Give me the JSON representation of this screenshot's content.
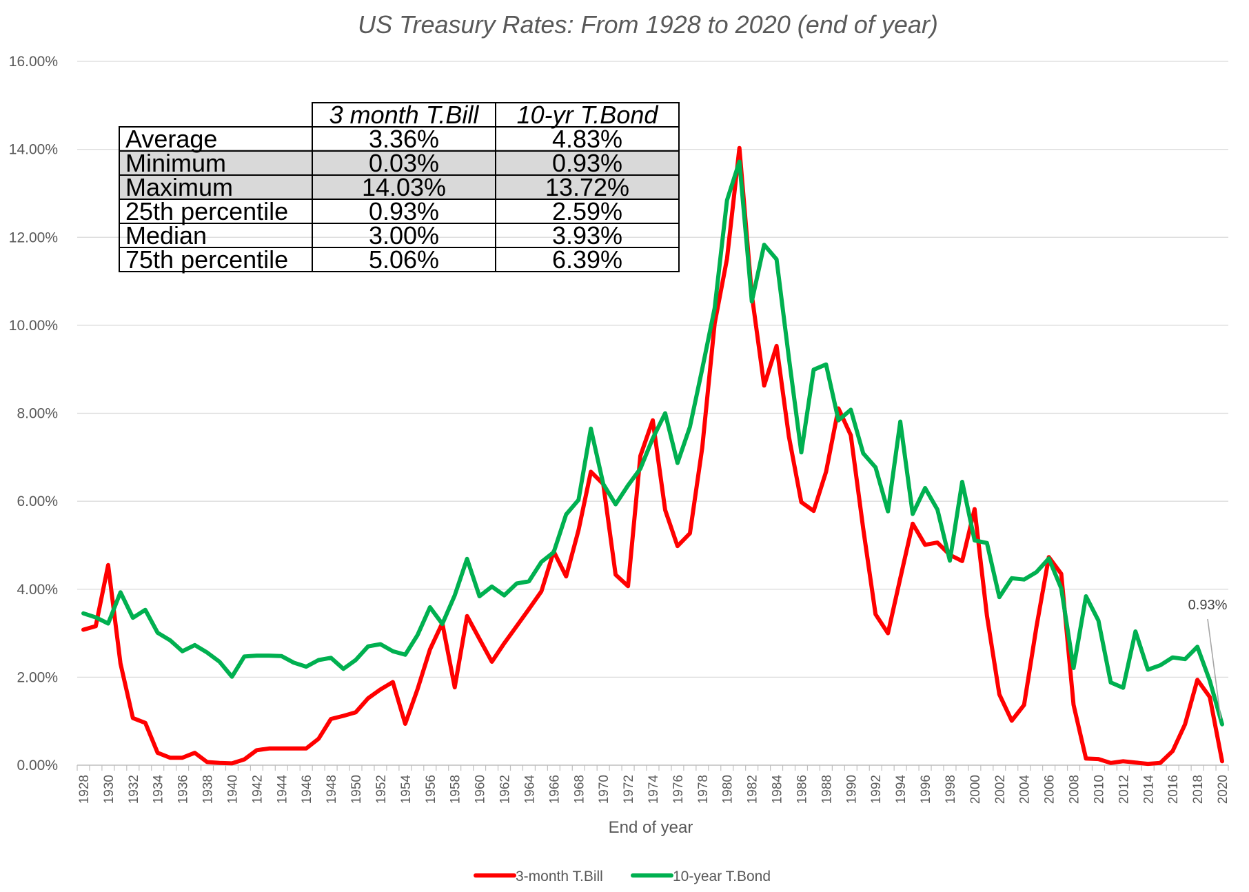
{
  "chart_data": {
    "type": "line",
    "title": "US Treasury Rates: From 1928 to 2020 (end of year)",
    "xlabel": "End of year",
    "ylabel": "",
    "xlim": [
      1928,
      2020
    ],
    "ylim": [
      0,
      16
    ],
    "yticks": [
      "0.00%",
      "2.00%",
      "4.00%",
      "6.00%",
      "8.00%",
      "10.00%",
      "12.00%",
      "14.00%",
      "16.00%"
    ],
    "xticks": [
      "1928",
      "1930",
      "1932",
      "1934",
      "1936",
      "1938",
      "1940",
      "1942",
      "1944",
      "1946",
      "1948",
      "1950",
      "1952",
      "1954",
      "1956",
      "1958",
      "1960",
      "1962",
      "1964",
      "1966",
      "1968",
      "1970",
      "1972",
      "1974",
      "1976",
      "1978",
      "1980",
      "1982",
      "1984",
      "1986",
      "1988",
      "1990",
      "1992",
      "1994",
      "1996",
      "1998",
      "2000",
      "2002",
      "2004",
      "2006",
      "2008",
      "2010",
      "2012",
      "2014",
      "2016",
      "2018",
      "2020"
    ],
    "grid": "horizontal",
    "legend": "bottom",
    "series": [
      {
        "name": "3-month T.Bill",
        "color": "#ff0000",
        "values": [
          3.08,
          3.16,
          4.55,
          2.31,
          1.07,
          0.96,
          0.28,
          0.17,
          0.17,
          0.28,
          0.07,
          0.05,
          0.04,
          0.13,
          0.34,
          0.38,
          0.38,
          0.38,
          0.38,
          0.6,
          1.05,
          1.12,
          1.2,
          1.52,
          1.72,
          1.89,
          0.94,
          1.73,
          2.63,
          3.23,
          1.77,
          3.39,
          2.87,
          2.35,
          2.77,
          3.16,
          3.55,
          3.95,
          4.86,
          4.29,
          5.34,
          6.67,
          6.39,
          4.33,
          4.07,
          7.03,
          7.84,
          5.8,
          4.98,
          5.27,
          7.22,
          10.04,
          11.51,
          14.03,
          10.69,
          8.63,
          9.53,
          7.47,
          5.98,
          5.78,
          6.67,
          8.11,
          7.5,
          5.38,
          3.43,
          3.0,
          4.25,
          5.49,
          5.01,
          5.06,
          4.78,
          4.64,
          5.82,
          3.4,
          1.61,
          1.01,
          1.37,
          3.15,
          4.73,
          4.35,
          1.37,
          0.15,
          0.14,
          0.05,
          0.09,
          0.06,
          0.03,
          0.05,
          0.32,
          0.93,
          1.94,
          1.55,
          0.09
        ]
      },
      {
        "name": "10-year T.Bond",
        "color": "#00b050",
        "values": [
          3.45,
          3.36,
          3.22,
          3.93,
          3.35,
          3.53,
          3.01,
          2.84,
          2.59,
          2.73,
          2.56,
          2.35,
          2.01,
          2.47,
          2.49,
          2.49,
          2.48,
          2.33,
          2.24,
          2.39,
          2.44,
          2.19,
          2.39,
          2.7,
          2.75,
          2.59,
          2.51,
          2.96,
          3.59,
          3.21,
          3.86,
          4.69,
          3.84,
          4.06,
          3.86,
          4.13,
          4.18,
          4.62,
          4.84,
          5.7,
          6.03,
          7.65,
          6.39,
          5.93,
          6.36,
          6.74,
          7.43,
          8.0,
          6.87,
          7.69,
          9.01,
          10.39,
          12.84,
          13.72,
          10.54,
          11.83,
          11.5,
          9.26,
          7.11,
          8.99,
          9.11,
          7.84,
          8.08,
          7.09,
          6.77,
          5.77,
          7.81,
          5.71,
          6.3,
          5.81,
          4.65,
          6.44,
          5.11,
          5.05,
          3.82,
          4.25,
          4.22,
          4.39,
          4.7,
          4.02,
          2.21,
          3.84,
          3.29,
          1.88,
          1.76,
          3.04,
          2.17,
          2.27,
          2.45,
          2.41,
          2.69,
          1.92,
          0.93
        ]
      }
    ],
    "annotations": [
      {
        "text": "0.93%",
        "x": 2020,
        "y": 0.93,
        "series": "10-year T.Bond"
      }
    ],
    "table": {
      "headers": [
        "3 month T.Bill",
        "10-yr T.Bond"
      ],
      "rows": [
        {
          "label": "Average",
          "tbill": "3.36%",
          "tbond": "4.83%",
          "shaded": false
        },
        {
          "label": "Minimum",
          "tbill": "0.03%",
          "tbond": "0.93%",
          "shaded": true
        },
        {
          "label": "Maximum",
          "tbill": "14.03%",
          "tbond": "13.72%",
          "shaded": true
        },
        {
          "label": "25th percentile",
          "tbill": "0.93%",
          "tbond": "2.59%",
          "shaded": false
        },
        {
          "label": "Median",
          "tbill": "3.00%",
          "tbond": "3.93%",
          "shaded": false
        },
        {
          "label": "75th percentile",
          "tbill": "5.06%",
          "tbond": "6.39%",
          "shaded": false
        }
      ]
    }
  }
}
